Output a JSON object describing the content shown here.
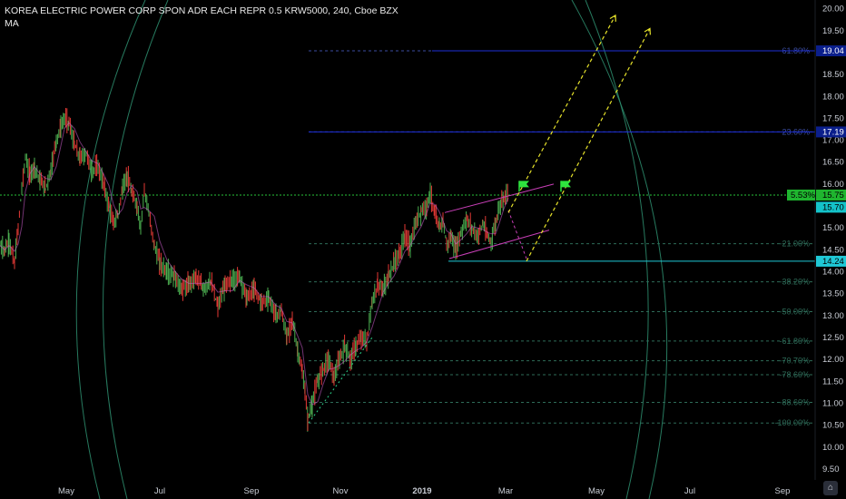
{
  "header": {
    "symbol_title": "KOREA ELECTRIC POWER CORP SPON ADR EACH REPR 0.5 KRW5000, 240, Cboe BZX",
    "indicator": "MA"
  },
  "chart_data": {
    "type": "candlestick",
    "ylim": [
      9.25,
      20.2
    ],
    "y_ticks": [
      9.5,
      10,
      10.5,
      11,
      11.5,
      12,
      12.5,
      13,
      13.5,
      14,
      14.5,
      15,
      15.5,
      16,
      16.5,
      17,
      17.5,
      18,
      18.5,
      19,
      19.5,
      20
    ],
    "y_tick_labels": [
      "9.50",
      "10.00",
      "10.50",
      "11.00",
      "11.50",
      "12.00",
      "12.50",
      "13.00",
      "13.50",
      "14.00",
      "14.50",
      "15.00",
      "15.50",
      "16.00",
      "16.50",
      "17.00",
      "17.50",
      "18.00",
      "18.50",
      "19.00",
      "19.50",
      "20.00"
    ],
    "x_ticks": [
      "May",
      "Jul",
      "Sep",
      "Nov",
      "2019",
      "Mar",
      "May",
      "Jul",
      "Sep"
    ],
    "price_path": [
      [
        0,
        14.6
      ],
      [
        5,
        14.5
      ],
      [
        10,
        14.7
      ],
      [
        16,
        14.2
      ],
      [
        20,
        15.0
      ],
      [
        24,
        15.9
      ],
      [
        28,
        16.6
      ],
      [
        33,
        16.2
      ],
      [
        38,
        16.4
      ],
      [
        44,
        16.1
      ],
      [
        50,
        15.9
      ],
      [
        56,
        16.3
      ],
      [
        62,
        17.0
      ],
      [
        67,
        17.3
      ],
      [
        71,
        17.5
      ],
      [
        76,
        17.4
      ],
      [
        82,
        16.9
      ],
      [
        88,
        16.6
      ],
      [
        95,
        16.7
      ],
      [
        101,
        16.3
      ],
      [
        108,
        16.4
      ],
      [
        114,
        16.0
      ],
      [
        120,
        15.5
      ],
      [
        125,
        15.1
      ],
      [
        130,
        15.3
      ],
      [
        135,
        15.9
      ],
      [
        140,
        16.2
      ],
      [
        145,
        15.8
      ],
      [
        151,
        15.5
      ],
      [
        155,
        15.0
      ],
      [
        159,
        15.9
      ],
      [
        164,
        15.3
      ],
      [
        170,
        14.6
      ],
      [
        176,
        14.2
      ],
      [
        184,
        14.0
      ],
      [
        192,
        13.9
      ],
      [
        200,
        13.6
      ],
      [
        208,
        13.7
      ],
      [
        216,
        13.9
      ],
      [
        224,
        13.6
      ],
      [
        232,
        13.8
      ],
      [
        240,
        13.2
      ],
      [
        248,
        13.7
      ],
      [
        256,
        13.8
      ],
      [
        264,
        13.9
      ],
      [
        272,
        13.4
      ],
      [
        280,
        13.6
      ],
      [
        288,
        13.3
      ],
      [
        296,
        13.4
      ],
      [
        304,
        13.0
      ],
      [
        310,
        13.1
      ],
      [
        316,
        12.5
      ],
      [
        322,
        12.9
      ],
      [
        328,
        12.2
      ],
      [
        333,
        11.7
      ],
      [
        336,
        11.3
      ],
      [
        339,
        10.6
      ],
      [
        344,
        11.0
      ],
      [
        350,
        11.5
      ],
      [
        356,
        11.8
      ],
      [
        362,
        12.0
      ],
      [
        368,
        11.6
      ],
      [
        374,
        12.0
      ],
      [
        380,
        12.3
      ],
      [
        386,
        12.0
      ],
      [
        392,
        12.3
      ],
      [
        398,
        12.5
      ],
      [
        404,
        12.4
      ],
      [
        410,
        13.3
      ],
      [
        416,
        13.7
      ],
      [
        422,
        13.6
      ],
      [
        428,
        13.9
      ],
      [
        434,
        14.2
      ],
      [
        440,
        14.4
      ],
      [
        446,
        14.8
      ],
      [
        452,
        14.6
      ],
      [
        458,
        15.1
      ],
      [
        464,
        15.4
      ],
      [
        470,
        15.5
      ],
      [
        474,
        15.8
      ],
      [
        479,
        15.3
      ],
      [
        484,
        15.0
      ],
      [
        488,
        15.2
      ],
      [
        492,
        14.6
      ],
      [
        497,
        14.8
      ],
      [
        502,
        14.5
      ],
      [
        508,
        14.9
      ],
      [
        514,
        15.2
      ],
      [
        520,
        15.0
      ],
      [
        526,
        14.8
      ],
      [
        532,
        15.1
      ],
      [
        537,
        14.8
      ],
      [
        541,
        14.7
      ],
      [
        546,
        15.1
      ],
      [
        550,
        15.5
      ],
      [
        555,
        15.7
      ],
      [
        560,
        15.85
      ]
    ],
    "horizontal_levels": [
      {
        "value": 19.04,
        "label": "19.04",
        "color": "#1e2fd8",
        "badge": "#0b1f8c"
      },
      {
        "value": 17.19,
        "label": "17.19",
        "color": "#1e2fd8",
        "badge": "#0b1f8c"
      },
      {
        "value": 15.75,
        "label": "15.75",
        "color": "#29c23a",
        "badge": "#1fb52f",
        "tag": "5.53%"
      },
      {
        "value": 15.7,
        "label": "15.70",
        "color": "#29c23a",
        "badge": "#14c2c9"
      },
      {
        "value": 14.24,
        "label": "14.24",
        "color": "#1fc8d6",
        "badge": "#1fc8d6"
      }
    ],
    "fib_levels": [
      {
        "value": 19.04,
        "label": "61.80%",
        "color": "#3a4ca0"
      },
      {
        "value": 17.19,
        "label": "23.60%",
        "color": "#3a4ca0"
      },
      {
        "value": 14.64,
        "label": "-21.00%",
        "color": "#2e6b58"
      },
      {
        "value": 13.77,
        "label": "-38.20%",
        "color": "#2e6b58"
      },
      {
        "value": 13.09,
        "label": "-50.00%",
        "color": "#2e6b58"
      },
      {
        "value": 12.42,
        "label": "-61.80%",
        "color": "#2e6b58"
      },
      {
        "value": 11.97,
        "label": "-70.70%",
        "color": "#2e6b58"
      },
      {
        "value": 11.65,
        "label": "-78.60%",
        "color": "#2e6b58"
      },
      {
        "value": 11.02,
        "label": "-88.60%",
        "color": "#2e6b58"
      },
      {
        "value": 10.55,
        "label": "-100.00%",
        "color": "#2e6b58"
      }
    ],
    "colors": {
      "background": "#000000",
      "up": "#26a69a",
      "candle_up": "#4caf50",
      "candle_down": "#e53935",
      "ma_line": "#d05fd0",
      "projection": "#e6e22a",
      "arc": "#2e8f70"
    }
  }
}
